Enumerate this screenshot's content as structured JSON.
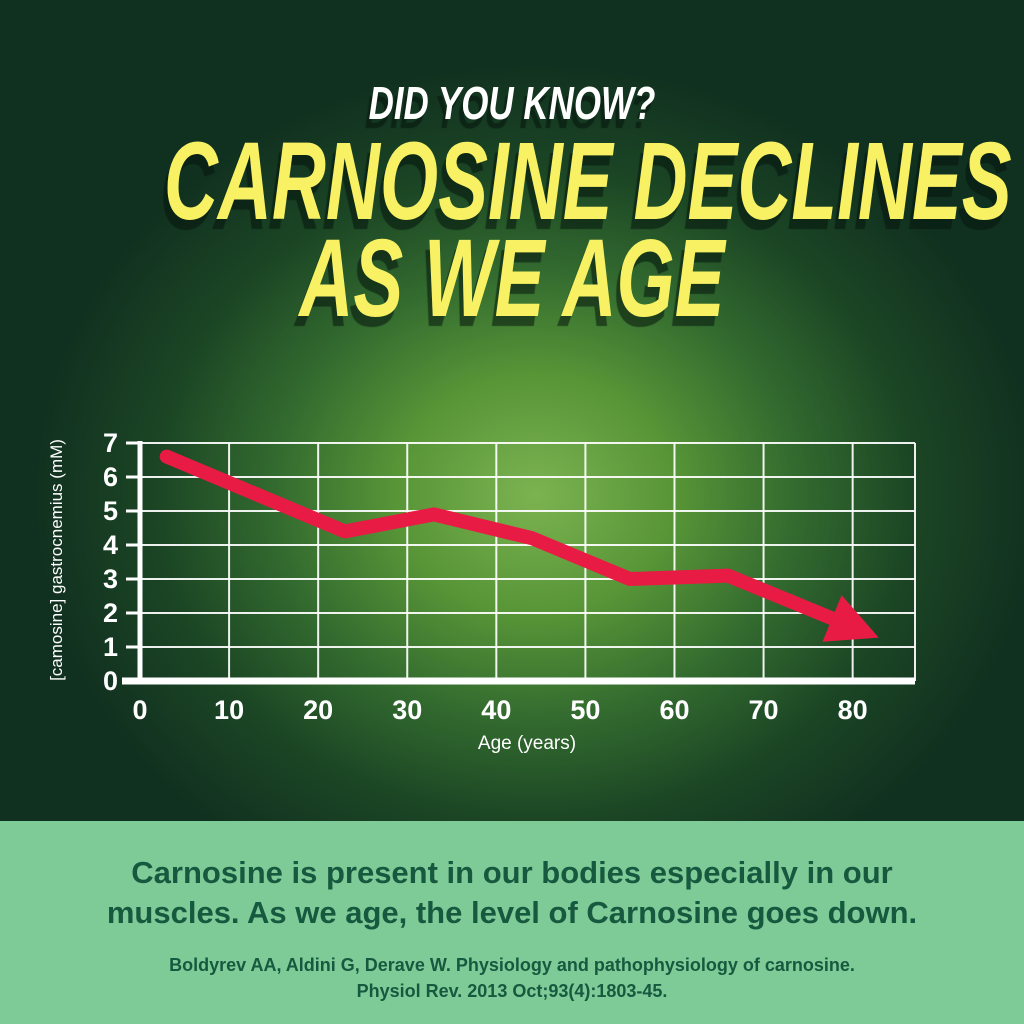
{
  "header": {
    "kicker": "DID YOU KNOW?",
    "title_line1": "CARNOSINE DECLINES",
    "title_line2": "AS WE AGE"
  },
  "chart_data": {
    "type": "line",
    "title": "",
    "xlabel": "Age (years)",
    "ylabel": "[camosine] gastrocnemius (mM)",
    "x_ticks": [
      0,
      10,
      20,
      30,
      40,
      50,
      60,
      70,
      80
    ],
    "y_ticks": [
      0,
      1,
      2,
      3,
      4,
      5,
      6,
      7
    ],
    "xlim": [
      0,
      87
    ],
    "ylim": [
      0,
      7
    ],
    "grid": true,
    "legend": "none",
    "series": [
      {
        "name": "carnosine concentration in gastrocnemius muscle",
        "color": "#e81b44",
        "style": "thick line with arrowhead at end",
        "points": [
          [
            3,
            6.6
          ],
          [
            23,
            4.4
          ],
          [
            33,
            4.9
          ],
          [
            44,
            4.2
          ],
          [
            55,
            3.0
          ],
          [
            66,
            3.1
          ],
          [
            79,
            1.7
          ]
        ]
      }
    ]
  },
  "footer": {
    "message": "Carnosine is present in our bodies especially in our muscles. As we age, the level of Carnosine goes down.",
    "citation_line1": "Boldyrev AA, Aldini G, Derave W. Physiology and pathophysiology of carnosine.",
    "citation_line2": "Physiol Rev. 2013 Oct;93(4):1803-45."
  },
  "colors": {
    "background_dark": "#113120",
    "background_glow": "#7cb351",
    "title_yellow": "#f7f163",
    "kicker_white": "#ffffff",
    "line_red": "#e81b44",
    "grid_white": "#ffffff",
    "footer_bg": "#7ecb97",
    "footer_text": "#17593f"
  }
}
